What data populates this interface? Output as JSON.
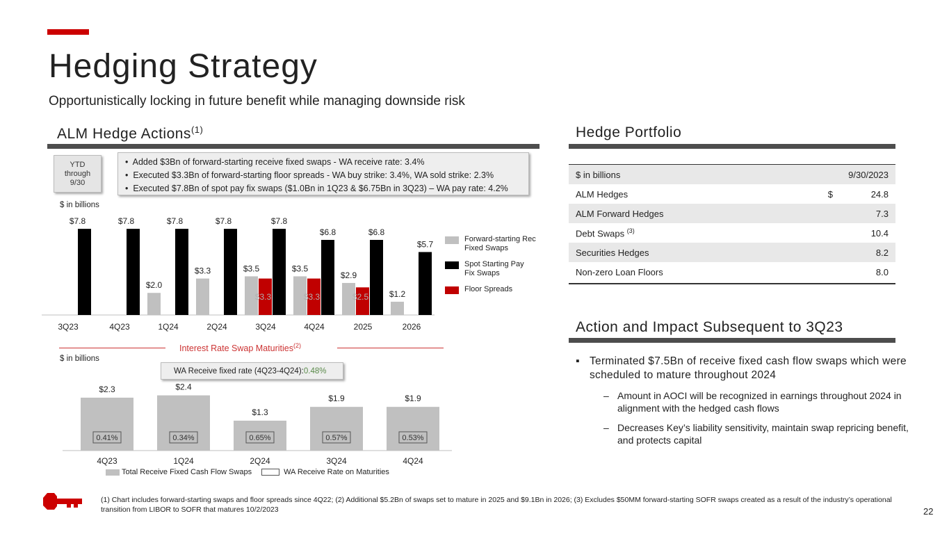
{
  "title": "Hedging Strategy",
  "subtitle": "Opportunistically locking in future benefit while managing downside risk",
  "alm": {
    "heading": "ALM Hedge Actions",
    "heading_sup": "(1)",
    "ytd_lines": [
      "YTD",
      "through",
      "9/30"
    ],
    "bullets": [
      "Added $3Bn of forward-starting receive fixed swaps - WA receive rate: 3.4%",
      "Executed $3.3Bn of forward-starting floor spreads - WA buy strike: 3.4%, WA sold strike: 2.3%",
      "Executed $7.8Bn of spot pay fix swaps ($1.0Bn in 1Q23 & $6.75Bn in 3Q23) – WA pay rate: 4.2%"
    ],
    "unit_label": "$ in billions",
    "legend": [
      "Forward-starting Rec Fixed Swaps",
      "Spot Starting Pay Fix Swaps",
      "Floor Spreads"
    ]
  },
  "maturities": {
    "heading": "Interest Rate Swap Maturities",
    "heading_sup": "(2)",
    "unit_label": "$ in billions",
    "wa_label": "WA Receive fixed rate (4Q23-4Q24): ",
    "wa_value": "0.48%",
    "legend": [
      "Total Receive Fixed Cash Flow Swaps",
      "WA Receive Rate on Maturities"
    ]
  },
  "chart_data": [
    {
      "type": "bar",
      "categories": [
        "3Q23",
        "4Q23",
        "1Q24",
        "2Q24",
        "3Q24",
        "4Q24",
        "2025",
        "2026"
      ],
      "series": [
        {
          "name": "Forward-starting Rec Fixed Swaps",
          "values": [
            null,
            null,
            2.0,
            3.3,
            3.5,
            3.5,
            2.9,
            1.2
          ],
          "labels": [
            "",
            "",
            "$2.0",
            "$3.3",
            "$3.5",
            "$3.5",
            "$2.9",
            "$1.2"
          ]
        },
        {
          "name": "Floor Spreads",
          "values": [
            null,
            null,
            null,
            null,
            3.3,
            3.3,
            2.5,
            null
          ],
          "labels": [
            "",
            "",
            "",
            "",
            "$3.3",
            "$3.3",
            "$2.5",
            ""
          ]
        },
        {
          "name": "Spot Starting Pay Fix Swaps",
          "values": [
            7.8,
            7.8,
            7.8,
            7.8,
            7.8,
            6.8,
            6.8,
            5.7
          ],
          "labels": [
            "$7.8",
            "$7.8",
            "$7.8",
            "$7.8",
            "$7.8",
            "$6.8",
            "$6.8",
            "$5.7"
          ]
        }
      ],
      "colors": {
        "rec": "#c0c0c0",
        "floor": "#c00000",
        "pay": "#000000"
      },
      "ylim": [
        0,
        8.5
      ]
    },
    {
      "type": "bar",
      "categories": [
        "4Q23",
        "1Q24",
        "2Q24",
        "3Q24",
        "4Q24"
      ],
      "series": [
        {
          "name": "Total Receive Fixed Cash Flow Swaps",
          "values": [
            2.3,
            2.4,
            1.3,
            1.9,
            1.9
          ],
          "labels": [
            "$2.3",
            "$2.4",
            "$1.3",
            "$1.9",
            "$1.9"
          ]
        },
        {
          "name": "WA Receive Rate on Maturities",
          "values": [
            "0.41%",
            "0.34%",
            "0.65%",
            "0.57%",
            "0.53%"
          ]
        }
      ],
      "colors": {
        "bar": "#c0c0c0"
      },
      "ylim": [
        0,
        2.6
      ]
    }
  ],
  "portfolio": {
    "heading": "Hedge Portfolio",
    "header": {
      "label": "$ in billions",
      "value": "9/30/2023"
    },
    "rows": [
      {
        "label": "ALM Hedges",
        "sup": "",
        "currency": "$",
        "value": "24.8"
      },
      {
        "label": "ALM Forward Hedges",
        "sup": "",
        "currency": "",
        "value": "7.3"
      },
      {
        "label": "Debt Swaps",
        "sup": "(3)",
        "currency": "",
        "value": "10.4"
      },
      {
        "label": "Securities Hedges",
        "sup": "",
        "currency": "",
        "value": "8.2"
      },
      {
        "label": "Non-zero Loan Floors",
        "sup": "",
        "currency": "",
        "value": "8.0"
      }
    ]
  },
  "impact": {
    "heading": "Action and Impact Subsequent to 3Q23",
    "main": "Terminated $7.5Bn of receive fixed cash flow swaps which were scheduled to mature throughout 2024",
    "subs": [
      "Amount in AOCI will be recognized in earnings throughout 2024 in alignment with the hedged cash flows",
      "Decreases Key’s liability sensitivity, maintain swap repricing benefit, and protects capital"
    ]
  },
  "footnote": "(1) Chart includes forward-starting swaps and floor spreads since 4Q22; (2) Additional $5.2Bn of swaps set to mature in 2025 and $9.1Bn in 2026; (3) Excludes $50MM forward-starting SOFR swaps created as a result of the industry’s operational transition from LIBOR to SOFR that matures 10/2/2023",
  "page_number": "22",
  "logo_icon": "key-logo-icon"
}
